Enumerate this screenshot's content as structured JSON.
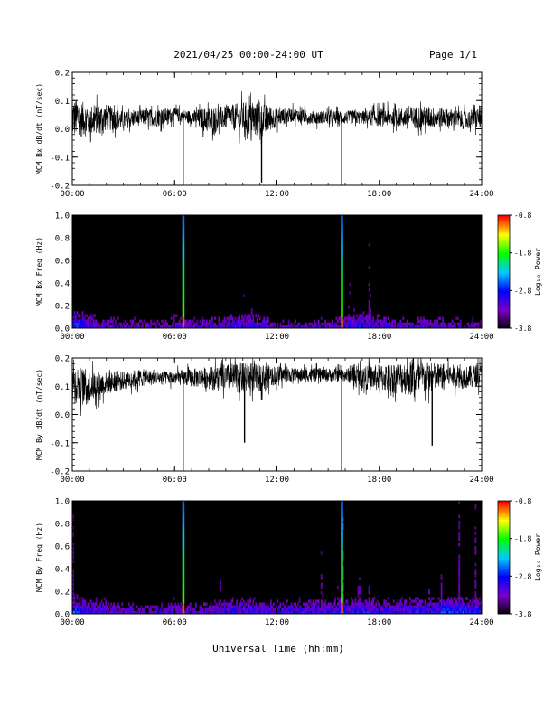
{
  "header": {
    "title": "2021/04/25  00:00-24:00 UT",
    "page": "Page 1/1"
  },
  "footer": {
    "xlabel": "Universal Time (hh:mm)"
  },
  "colorbar": {
    "label": "Log₁₀ Power",
    "tick_labels": [
      "-0.8",
      "-1.8",
      "-2.8",
      "-3.8"
    ],
    "range": [
      -3.8,
      -0.8
    ],
    "colors": [
      "#000000",
      "#7a00c8",
      "#0000ff",
      "#00c8ff",
      "#00ff00",
      "#ffff00",
      "#ff0000"
    ]
  },
  "chart_data": [
    {
      "type": "line",
      "title": "",
      "ylabel": "MCM Bx dB/dt (nT/sec)",
      "xlim": [
        0,
        24
      ],
      "ylim": [
        -0.2,
        0.2
      ],
      "x_tick_labels": [
        "00:00",
        "06:00",
        "12:00",
        "18:00",
        "24:00"
      ],
      "y_tick_labels": [
        "-0.2",
        "-0.1",
        "0.0",
        "0.1",
        "0.2"
      ],
      "y_ticks": [
        -0.2,
        -0.1,
        0.0,
        0.1,
        0.2
      ],
      "series": [
        {
          "x": [
            0,
            1,
            2,
            3,
            4,
            5,
            6,
            7,
            8,
            9,
            10,
            11,
            12,
            13,
            14,
            15,
            16,
            17,
            18,
            19,
            20,
            21,
            22,
            23,
            24
          ],
          "y": [
            0.04,
            0.03,
            0.04,
            0.03,
            0.04,
            0.04,
            0.05,
            0.04,
            0.03,
            0.04,
            0.04,
            0.03,
            0.04,
            0.05,
            0.04,
            0.04,
            0.04,
            0.04,
            0.04,
            0.04,
            0.04,
            0.04,
            0.04,
            0.03,
            0.04
          ],
          "amplitude": [
            0.09,
            0.07,
            0.06,
            0.04,
            0.035,
            0.04,
            0.03,
            0.03,
            0.06,
            0.05,
            0.07,
            0.08,
            0.04,
            0.03,
            0.03,
            0.03,
            0.03,
            0.03,
            0.04,
            0.04,
            0.05,
            0.05,
            0.04,
            0.04,
            0.05
          ]
        }
      ],
      "spikes": [
        {
          "x": 6.5,
          "y": -0.2
        },
        {
          "x": 11.1,
          "y": -0.19
        },
        {
          "x": 15.8,
          "y": -0.2
        }
      ]
    },
    {
      "type": "heatmap",
      "title": "",
      "ylabel": "MCM Bx Freq (Hz)",
      "xlim": [
        0,
        24
      ],
      "ylim": [
        0.0,
        1.0
      ],
      "x_tick_labels": [
        "00:00",
        "06:00",
        "12:00",
        "18:00",
        "24:00"
      ],
      "y_tick_labels": [
        "0.0",
        "0.2",
        "0.4",
        "0.6",
        "0.8",
        "1.0"
      ],
      "y_ticks": [
        0.0,
        0.2,
        0.4,
        0.6,
        0.8,
        1.0
      ],
      "bright_columns": [
        6.5,
        15.8
      ],
      "background_level": -3.8,
      "low_freq_level": [
        -2.6,
        -2.9,
        -3.1,
        -3.2,
        -3.2,
        -3.3,
        -3.0,
        -3.2,
        -3.1,
        -3.0,
        -2.9,
        -2.9,
        -3.2,
        -3.2,
        -3.2,
        -3.2,
        -3.0,
        -2.8,
        -3.0,
        -3.1,
        -3.1,
        -3.1,
        -3.1,
        -3.2,
        -3.2
      ]
    },
    {
      "type": "line",
      "title": "",
      "ylabel": "MCM By dB/dt (nT/sec)",
      "xlim": [
        0,
        24
      ],
      "ylim": [
        -0.2,
        0.2
      ],
      "x_tick_labels": [
        "00:00",
        "06:00",
        "12:00",
        "18:00",
        "24:00"
      ],
      "y_tick_labels": [
        "-0.2",
        "-0.1",
        "0.0",
        "0.1",
        "0.2"
      ],
      "y_ticks": [
        -0.2,
        -0.1,
        0.0,
        0.1,
        0.2
      ],
      "series": [
        {
          "x": [
            0,
            1,
            2,
            3,
            4,
            5,
            6,
            7,
            8,
            9,
            10,
            11,
            12,
            13,
            14,
            15,
            16,
            17,
            18,
            19,
            20,
            21,
            22,
            23,
            24
          ],
          "y": [
            0.11,
            0.1,
            0.11,
            0.12,
            0.13,
            0.13,
            0.13,
            0.13,
            0.13,
            0.13,
            0.13,
            0.13,
            0.14,
            0.14,
            0.14,
            0.14,
            0.14,
            0.13,
            0.13,
            0.13,
            0.13,
            0.13,
            0.14,
            0.13,
            0.14
          ],
          "amplitude": [
            0.09,
            0.07,
            0.05,
            0.04,
            0.04,
            0.03,
            0.03,
            0.04,
            0.05,
            0.06,
            0.07,
            0.06,
            0.04,
            0.03,
            0.03,
            0.03,
            0.03,
            0.05,
            0.06,
            0.07,
            0.08,
            0.07,
            0.05,
            0.05,
            0.05
          ]
        }
      ],
      "spikes": [
        {
          "x": 6.5,
          "y": -0.2
        },
        {
          "x": 10.1,
          "y": -0.1
        },
        {
          "x": 15.8,
          "y": -0.2
        },
        {
          "x": 21.1,
          "y": -0.11
        }
      ]
    },
    {
      "type": "heatmap",
      "title": "",
      "ylabel": "MCM By Freq (Hz)",
      "xlim": [
        0,
        24
      ],
      "ylim": [
        0.0,
        1.0
      ],
      "x_tick_labels": [
        "00:00",
        "06:00",
        "12:00",
        "18:00",
        "24:00"
      ],
      "y_tick_labels": [
        "0.0",
        "0.2",
        "0.4",
        "0.6",
        "0.8",
        "1.0"
      ],
      "y_ticks": [
        0.0,
        0.2,
        0.4,
        0.6,
        0.8,
        1.0
      ],
      "bright_columns": [
        6.5,
        15.8
      ],
      "background_level": -3.8,
      "low_freq_level": [
        -2.6,
        -2.9,
        -3.0,
        -3.1,
        -3.1,
        -3.1,
        -3.0,
        -3.1,
        -3.0,
        -2.9,
        -2.9,
        -2.9,
        -3.0,
        -2.9,
        -2.9,
        -2.9,
        -2.8,
        -2.8,
        -2.9,
        -2.9,
        -2.8,
        -2.8,
        -2.6,
        -2.7,
        -2.8
      ]
    }
  ]
}
